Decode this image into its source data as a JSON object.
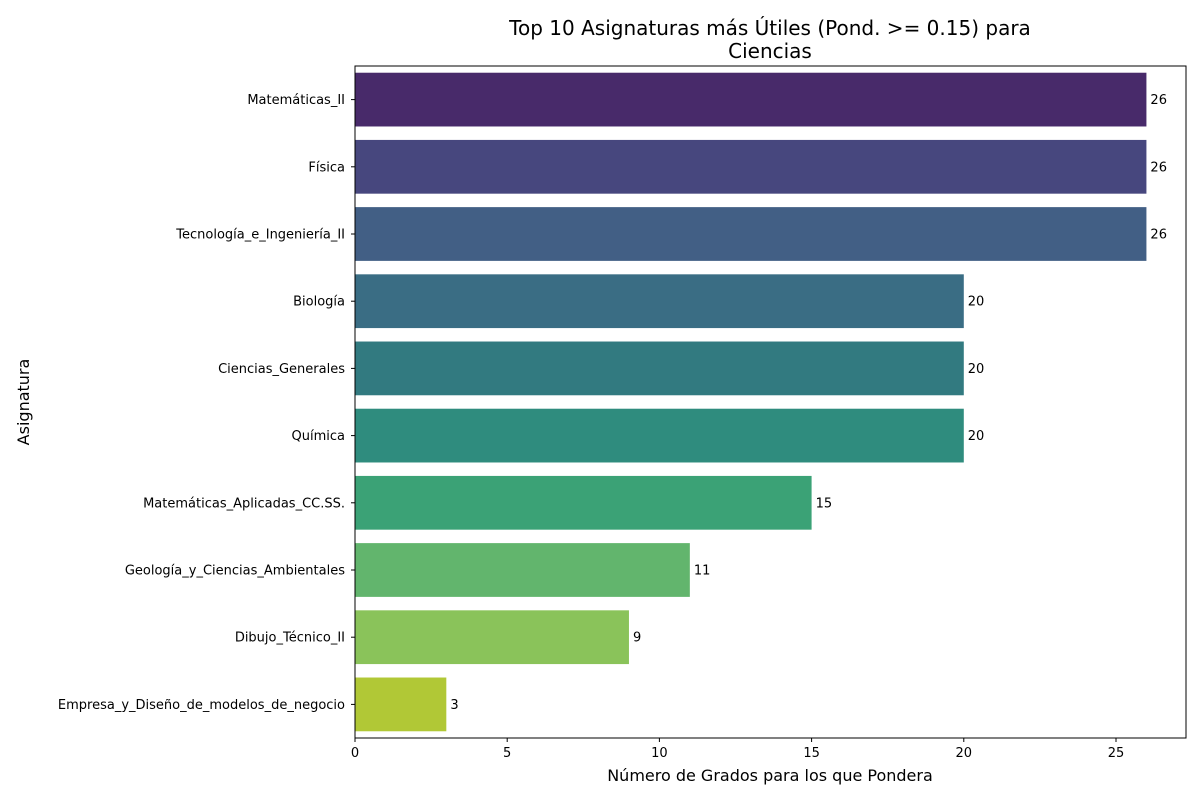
{
  "chart_data": {
    "type": "bar",
    "orientation": "horizontal",
    "title_lines": [
      "Top 10 Asignaturas más Útiles (Pond. >= 0.15) para",
      "Ciencias"
    ],
    "xlabel": "Número de Grados para los que Pondera",
    "ylabel": "Asignatura",
    "xlim": [
      0,
      27.3
    ],
    "xticks": [
      0,
      5,
      10,
      15,
      20,
      25
    ],
    "grid": false,
    "categories": [
      "Matemáticas_II",
      "Física",
      "Tecnología_e_Ingeniería_II",
      "Biología",
      "Ciencias_Generales",
      "Química",
      "Matemáticas_Aplicadas_CC.SS.",
      "Geología_y_Ciencias_Ambientales",
      "Dibujo_Técnico_II",
      "Empresa_y_Diseño_de_modelos_de_negocio"
    ],
    "values": [
      26,
      26,
      26,
      20,
      20,
      20,
      15,
      11,
      9,
      3
    ],
    "value_labels": [
      "26",
      "26",
      "26",
      "20",
      "20",
      "20",
      "15",
      "11",
      "9",
      "3"
    ],
    "colors": [
      "#482a6a",
      "#47477e",
      "#425f85",
      "#3a6d84",
      "#327a80",
      "#2f8c7e",
      "#3ba276",
      "#62b56d",
      "#8ac35a",
      "#b1c836"
    ],
    "palette": "viridis"
  }
}
